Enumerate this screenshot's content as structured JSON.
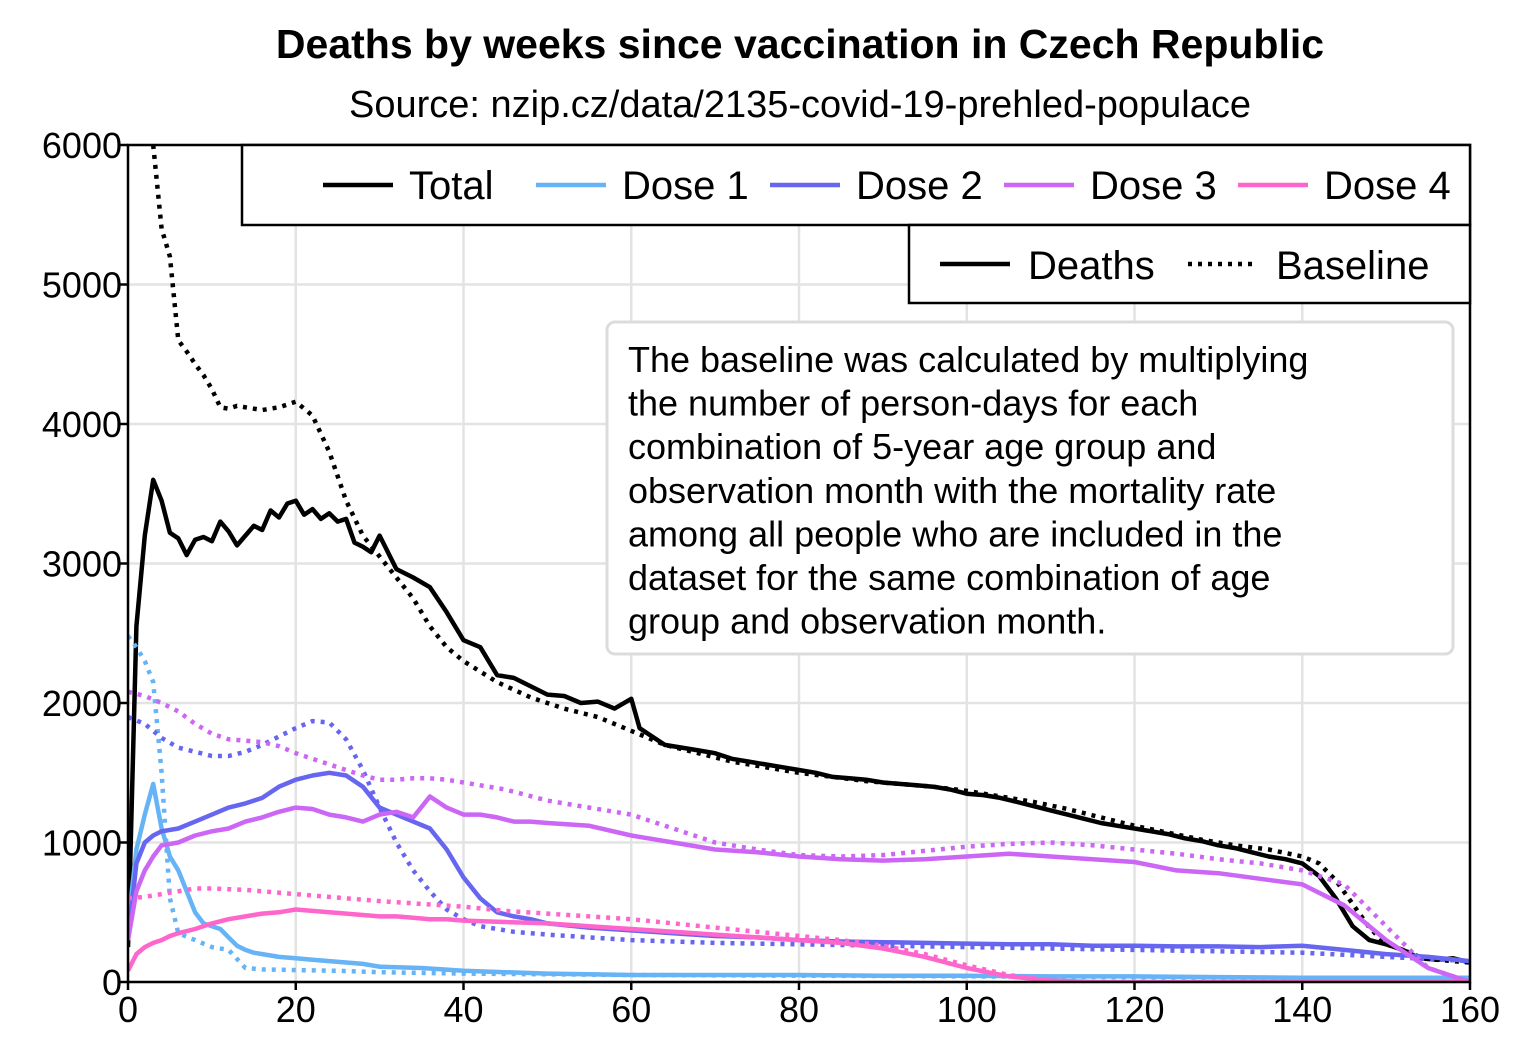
{
  "chart_data": {
    "type": "line",
    "title": "Deaths by weeks since vaccination in Czech Republic",
    "subtitle": "Source: nzip.cz/data/2135-covid-19-prehled-populace",
    "xlabel": "",
    "ylabel": "",
    "xlim": [
      0,
      160
    ],
    "ylim": [
      0,
      6000
    ],
    "x_ticks": [
      0,
      20,
      40,
      60,
      80,
      100,
      120,
      140,
      160
    ],
    "y_ticks": [
      0,
      1000,
      2000,
      3000,
      4000,
      5000,
      6000
    ],
    "grid": true,
    "legend_placement": "top-right",
    "legend_series": [
      {
        "name": "Total",
        "color": "#000000"
      },
      {
        "name": "Dose 1",
        "color": "#66b3f5"
      },
      {
        "name": "Dose 2",
        "color": "#6666f0"
      },
      {
        "name": "Dose 3",
        "color": "#cc66f5"
      },
      {
        "name": "Dose 4",
        "color": "#ff66cc"
      }
    ],
    "legend_styles": [
      {
        "name": "Deaths",
        "dash": "solid"
      },
      {
        "name": "Baseline",
        "dash": "dotted"
      }
    ],
    "annotation": [
      "The baseline was calculated by multiplying",
      "the number of person-days for each",
      "combination of 5-year age group and",
      "observation month with the mortality rate",
      "among all people who are included in the",
      "dataset for the same combination of age",
      "group and observation month."
    ],
    "series": [
      {
        "group": "Total",
        "style": "Deaths",
        "color": "#000000",
        "x": [
          0,
          1,
          2,
          3,
          4,
          5,
          6,
          7,
          8,
          9,
          10,
          11,
          12,
          13,
          14,
          15,
          16,
          17,
          18,
          19,
          20,
          21,
          22,
          23,
          24,
          25,
          26,
          27,
          28,
          29,
          30,
          32,
          34,
          36,
          38,
          40,
          42,
          44,
          46,
          48,
          50,
          52,
          54,
          56,
          58,
          60,
          61,
          62,
          64,
          66,
          68,
          70,
          72,
          74,
          76,
          78,
          80,
          82,
          84,
          86,
          88,
          90,
          92,
          94,
          96,
          98,
          100,
          102,
          104,
          106,
          108,
          110,
          112,
          114,
          116,
          118,
          120,
          122,
          124,
          126,
          128,
          130,
          132,
          134,
          136,
          138,
          140,
          142,
          144,
          146,
          148,
          150,
          152,
          154,
          156,
          158,
          160
        ],
        "y": [
          250,
          2550,
          3200,
          3600,
          3450,
          3220,
          3180,
          3060,
          3170,
          3190,
          3160,
          3300,
          3230,
          3130,
          3200,
          3270,
          3240,
          3380,
          3330,
          3430,
          3450,
          3350,
          3390,
          3320,
          3360,
          3300,
          3320,
          3150,
          3120,
          3080,
          3200,
          2960,
          2900,
          2830,
          2650,
          2450,
          2400,
          2200,
          2180,
          2120,
          2060,
          2050,
          2000,
          2010,
          1960,
          2030,
          1820,
          1780,
          1700,
          1680,
          1660,
          1640,
          1600,
          1580,
          1560,
          1540,
          1520,
          1500,
          1470,
          1460,
          1450,
          1430,
          1420,
          1410,
          1400,
          1380,
          1350,
          1340,
          1320,
          1290,
          1260,
          1230,
          1200,
          1170,
          1140,
          1120,
          1100,
          1080,
          1060,
          1030,
          1010,
          980,
          960,
          930,
          900,
          880,
          850,
          760,
          600,
          400,
          300,
          270,
          230,
          170,
          160,
          170,
          140
        ]
      },
      {
        "group": "Total",
        "style": "Baseline",
        "color": "#000000",
        "x": [
          3,
          4,
          5,
          6,
          7,
          8,
          9,
          10,
          11,
          12,
          13,
          14,
          15,
          16,
          18,
          20,
          22,
          24,
          26,
          28,
          30,
          32,
          34,
          36,
          38,
          40,
          44,
          48,
          52,
          56,
          60,
          64,
          68,
          72,
          76,
          80,
          84,
          88,
          92,
          96,
          100,
          104,
          108,
          112,
          116,
          120,
          124,
          128,
          132,
          136,
          140,
          142,
          144,
          146,
          148,
          150,
          152,
          154,
          156,
          158,
          160
        ],
        "y": [
          6000,
          5400,
          5200,
          4600,
          4520,
          4430,
          4350,
          4250,
          4120,
          4110,
          4130,
          4120,
          4110,
          4100,
          4120,
          4160,
          4060,
          3800,
          3450,
          3200,
          3050,
          2900,
          2750,
          2550,
          2400,
          2300,
          2150,
          2040,
          1960,
          1900,
          1800,
          1700,
          1640,
          1580,
          1540,
          1500,
          1470,
          1440,
          1420,
          1400,
          1370,
          1330,
          1290,
          1240,
          1180,
          1120,
          1070,
          1020,
          980,
          950,
          900,
          850,
          730,
          560,
          390,
          270,
          230,
          180,
          160,
          150,
          140
        ]
      },
      {
        "group": "Dose 1",
        "style": "Deaths",
        "color": "#66b3f5",
        "x": [
          0,
          1,
          2,
          3,
          4,
          5,
          6,
          7,
          8,
          9,
          10,
          11,
          12,
          13,
          14,
          15,
          16,
          18,
          20,
          22,
          24,
          26,
          28,
          30,
          35,
          40,
          45,
          50,
          55,
          60,
          70,
          80,
          90,
          100,
          110,
          120,
          130,
          140,
          150,
          160
        ],
        "y": [
          400,
          950,
          1200,
          1420,
          1100,
          900,
          800,
          650,
          500,
          420,
          400,
          380,
          320,
          260,
          230,
          210,
          200,
          180,
          170,
          160,
          150,
          140,
          130,
          110,
          100,
          80,
          70,
          60,
          55,
          50,
          50,
          50,
          45,
          45,
          40,
          40,
          35,
          30,
          30,
          30
        ]
      },
      {
        "group": "Dose 1",
        "style": "Baseline",
        "color": "#66b3f5",
        "x": [
          0,
          1,
          2,
          3,
          4,
          5,
          6,
          8,
          10,
          12,
          14,
          16,
          20,
          25,
          30,
          40,
          60,
          80,
          100,
          120,
          140,
          160
        ],
        "y": [
          2480,
          2400,
          2300,
          2150,
          1500,
          600,
          350,
          300,
          250,
          230,
          100,
          90,
          85,
          80,
          70,
          60,
          50,
          45,
          40,
          35,
          30,
          30
        ]
      },
      {
        "group": "Dose 2",
        "style": "Deaths",
        "color": "#6666f0",
        "x": [
          0,
          1,
          2,
          3,
          4,
          6,
          8,
          10,
          12,
          14,
          16,
          18,
          20,
          22,
          24,
          26,
          28,
          30,
          32,
          34,
          36,
          38,
          40,
          42,
          44,
          46,
          48,
          50,
          55,
          60,
          65,
          70,
          75,
          80,
          85,
          90,
          95,
          100,
          105,
          110,
          115,
          120,
          125,
          130,
          135,
          140,
          145,
          150,
          155,
          160
        ],
        "y": [
          300,
          850,
          1000,
          1050,
          1080,
          1100,
          1150,
          1200,
          1250,
          1280,
          1320,
          1400,
          1450,
          1480,
          1500,
          1480,
          1400,
          1250,
          1200,
          1150,
          1100,
          950,
          750,
          600,
          500,
          470,
          450,
          420,
          390,
          370,
          350,
          330,
          320,
          300,
          290,
          285,
          280,
          275,
          270,
          270,
          260,
          260,
          255,
          255,
          250,
          260,
          230,
          200,
          180,
          150
        ]
      },
      {
        "group": "Dose 2",
        "style": "Baseline",
        "color": "#6666f0",
        "x": [
          0,
          2,
          4,
          6,
          8,
          10,
          12,
          14,
          16,
          18,
          20,
          22,
          24,
          26,
          28,
          30,
          32,
          34,
          36,
          38,
          40,
          42,
          44,
          46,
          48,
          50,
          55,
          60,
          70,
          80,
          90,
          100,
          110,
          120,
          130,
          140,
          150,
          160
        ],
        "y": [
          1900,
          1850,
          1750,
          1680,
          1650,
          1620,
          1620,
          1650,
          1700,
          1760,
          1820,
          1870,
          1860,
          1740,
          1520,
          1250,
          1000,
          800,
          650,
          520,
          450,
          400,
          380,
          360,
          350,
          340,
          320,
          300,
          280,
          270,
          260,
          250,
          240,
          230,
          220,
          210,
          180,
          150
        ]
      },
      {
        "group": "Dose 3",
        "style": "Deaths",
        "color": "#cc66f5",
        "x": [
          0,
          1,
          2,
          3,
          4,
          6,
          8,
          10,
          12,
          14,
          16,
          18,
          20,
          22,
          24,
          26,
          28,
          30,
          32,
          34,
          36,
          38,
          40,
          42,
          44,
          46,
          48,
          50,
          55,
          60,
          65,
          70,
          75,
          80,
          85,
          90,
          95,
          100,
          105,
          110,
          115,
          120,
          125,
          130,
          135,
          140,
          145,
          150,
          155,
          160
        ],
        "y": [
          300,
          650,
          800,
          900,
          980,
          1000,
          1050,
          1080,
          1100,
          1150,
          1180,
          1220,
          1250,
          1240,
          1200,
          1180,
          1150,
          1200,
          1220,
          1180,
          1330,
          1250,
          1200,
          1200,
          1180,
          1150,
          1150,
          1140,
          1120,
          1050,
          1000,
          950,
          930,
          900,
          880,
          870,
          880,
          900,
          920,
          900,
          880,
          860,
          800,
          780,
          740,
          700,
          550,
          300,
          100,
          0
        ]
      },
      {
        "group": "Dose 3",
        "style": "Baseline",
        "color": "#cc66f5",
        "x": [
          0,
          2,
          4,
          6,
          8,
          10,
          12,
          14,
          16,
          18,
          20,
          22,
          24,
          26,
          28,
          30,
          32,
          34,
          36,
          38,
          40,
          45,
          50,
          55,
          60,
          65,
          70,
          75,
          80,
          85,
          90,
          95,
          100,
          105,
          110,
          115,
          120,
          125,
          130,
          135,
          140,
          145,
          150,
          155,
          160
        ],
        "y": [
          2080,
          2050,
          2000,
          1940,
          1850,
          1780,
          1740,
          1730,
          1720,
          1690,
          1640,
          1600,
          1560,
          1520,
          1480,
          1450,
          1450,
          1460,
          1460,
          1450,
          1430,
          1380,
          1300,
          1250,
          1200,
          1100,
          1000,
          950,
          910,
          900,
          910,
          940,
          970,
          990,
          1000,
          980,
          950,
          920,
          880,
          850,
          800,
          700,
          400,
          100,
          0
        ]
      },
      {
        "group": "Dose 4",
        "style": "Deaths",
        "color": "#ff66cc",
        "x": [
          0,
          1,
          2,
          3,
          4,
          5,
          6,
          8,
          10,
          12,
          14,
          16,
          18,
          20,
          22,
          24,
          26,
          28,
          30,
          32,
          34,
          36,
          38,
          40,
          45,
          50,
          55,
          60,
          65,
          70,
          75,
          80,
          85,
          90,
          95,
          100,
          105,
          110,
          115,
          120,
          130,
          140,
          150,
          160
        ],
        "y": [
          80,
          200,
          250,
          280,
          300,
          330,
          350,
          380,
          420,
          450,
          470,
          490,
          500,
          520,
          510,
          500,
          490,
          480,
          470,
          470,
          460,
          450,
          450,
          440,
          430,
          420,
          400,
          380,
          360,
          340,
          320,
          300,
          280,
          240,
          180,
          100,
          40,
          10,
          0,
          0,
          0,
          0,
          0,
          0
        ]
      },
      {
        "group": "Dose 4",
        "style": "Baseline",
        "color": "#ff66cc",
        "x": [
          0,
          2,
          4,
          6,
          8,
          10,
          12,
          14,
          16,
          18,
          20,
          22,
          24,
          26,
          28,
          30,
          35,
          40,
          45,
          50,
          55,
          60,
          65,
          70,
          75,
          80,
          85,
          90,
          95,
          100,
          105,
          110,
          115,
          120,
          130,
          140,
          150,
          160
        ],
        "y": [
          600,
          610,
          630,
          650,
          670,
          670,
          665,
          660,
          650,
          640,
          630,
          620,
          610,
          600,
          590,
          580,
          560,
          540,
          510,
          490,
          470,
          450,
          420,
          390,
          360,
          330,
          300,
          260,
          200,
          120,
          50,
          10,
          0,
          0,
          0,
          0,
          0,
          0
        ]
      }
    ]
  }
}
